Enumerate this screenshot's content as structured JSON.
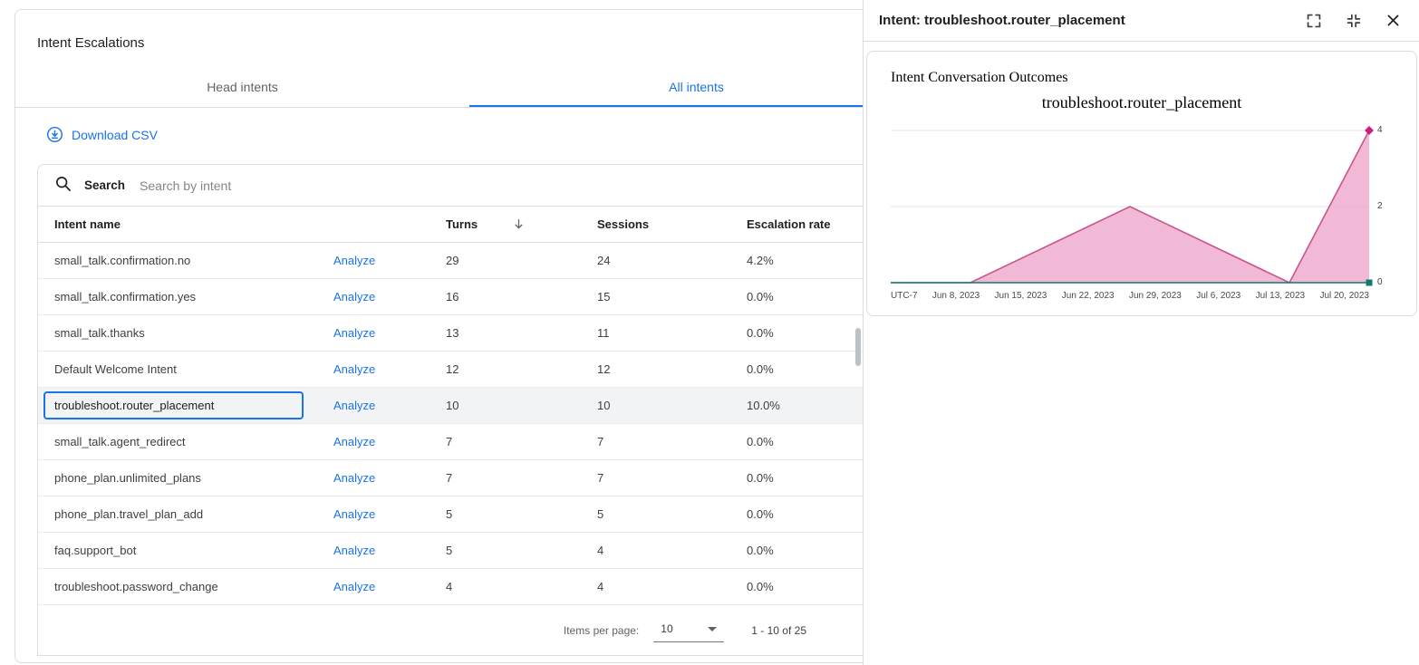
{
  "left": {
    "title": "Intent Escalations",
    "tabs": [
      {
        "label": "Head intents"
      },
      {
        "label": "All intents"
      }
    ],
    "active_tab": 1,
    "download_csv_label": "Download CSV",
    "search_label": "Search",
    "search_placeholder": "Search by intent",
    "table": {
      "headers": {
        "intent": "Intent name",
        "turns": "Turns",
        "sessions": "Sessions",
        "rate": "Escalation rate"
      },
      "analyze_label": "Analyze",
      "rows": [
        {
          "intent": "small_talk.confirmation.no",
          "turns": "29",
          "sessions": "24",
          "rate": "4.2%",
          "selected": false
        },
        {
          "intent": "small_talk.confirmation.yes",
          "turns": "16",
          "sessions": "15",
          "rate": "0.0%",
          "selected": false
        },
        {
          "intent": "small_talk.thanks",
          "turns": "13",
          "sessions": "11",
          "rate": "0.0%",
          "selected": false
        },
        {
          "intent": "Default Welcome Intent",
          "turns": "12",
          "sessions": "12",
          "rate": "0.0%",
          "selected": false
        },
        {
          "intent": "troubleshoot.router_placement",
          "turns": "10",
          "sessions": "10",
          "rate": "10.0%",
          "selected": true
        },
        {
          "intent": "small_talk.agent_redirect",
          "turns": "7",
          "sessions": "7",
          "rate": "0.0%",
          "selected": false
        },
        {
          "intent": "phone_plan.unlimited_plans",
          "turns": "7",
          "sessions": "7",
          "rate": "0.0%",
          "selected": false
        },
        {
          "intent": "phone_plan.travel_plan_add",
          "turns": "5",
          "sessions": "5",
          "rate": "0.0%",
          "selected": false
        },
        {
          "intent": "faq.support_bot",
          "turns": "5",
          "sessions": "4",
          "rate": "0.0%",
          "selected": false
        },
        {
          "intent": "troubleshoot.password_change",
          "turns": "4",
          "sessions": "4",
          "rate": "0.0%",
          "selected": false
        }
      ],
      "footer": {
        "items_per_page_label": "Items per page:",
        "page_size": "10",
        "range_label": "1 - 10 of 25"
      }
    }
  },
  "right": {
    "header_title": "Intent: troubleshoot.router_placement",
    "card_title": "Intent Conversation Outcomes"
  },
  "colors": {
    "accent": "#1a73e8",
    "selected_row_bg": "#f1f3f4",
    "area_fill": "#eeadce",
    "area_line": "#c9548e",
    "diamond_marker": "#cf1c7e",
    "square_marker": "#0e7c6b"
  },
  "chart_data": {
    "type": "area",
    "title": "troubleshoot.router_placement",
    "x_prefix_label": "UTC-7",
    "categories": [
      "Jun 8, 2023",
      "Jun 15, 2023",
      "Jun 22, 2023",
      "Jun 29, 2023",
      "Jul 6, 2023",
      "Jul 13, 2023",
      "Jul 20, 2023"
    ],
    "series": [
      {
        "marker": "diamond",
        "line_color": "#c9548e",
        "fill_color": "#eeadce",
        "marker_color": "#cf1c7e",
        "values": [
          0,
          0,
          1,
          2,
          1,
          0,
          4
        ]
      },
      {
        "marker": "square",
        "line_color": "#0e7c6b",
        "marker_color": "#0e7c6b",
        "values": [
          0,
          0,
          0,
          0,
          0,
          0,
          0
        ]
      }
    ],
    "ylim": [
      0,
      4
    ],
    "yticks": [
      0,
      2,
      4
    ],
    "y_axis_position": "right",
    "grid": true
  }
}
